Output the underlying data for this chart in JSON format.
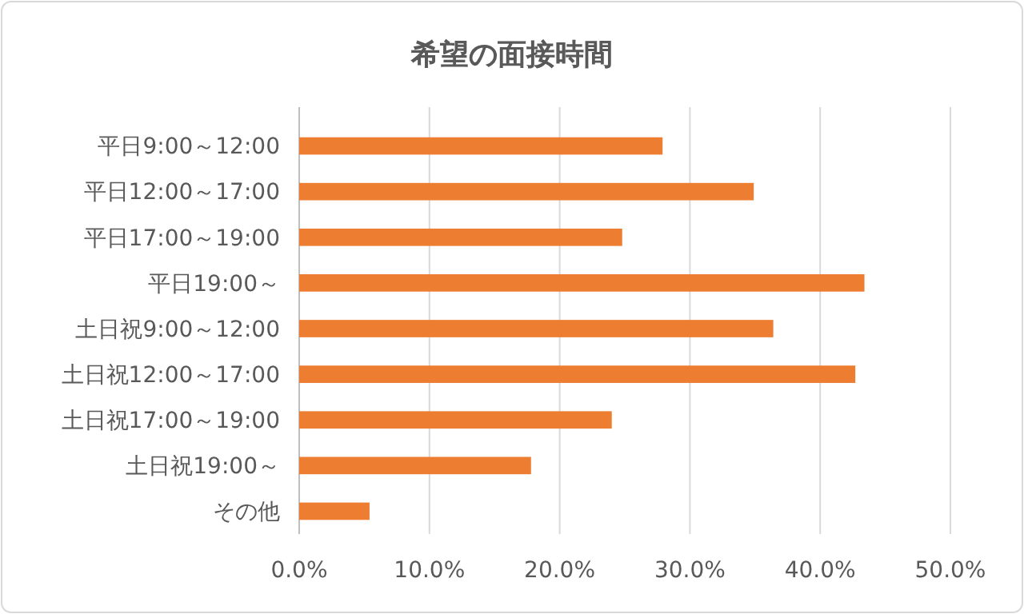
{
  "chart_data": {
    "type": "bar",
    "orientation": "horizontal",
    "title": "希望の面接時間",
    "categories": [
      "平日9:00～12:00",
      "平日12:00～17:00",
      "平日17:00～19:00",
      "平日19:00～",
      "土日祝9:00～12:00",
      "土日祝12:00～17:00",
      "土日祝17:00～19:00",
      "土日祝19:00～",
      "その他"
    ],
    "values": [
      27.9,
      34.9,
      24.8,
      43.4,
      36.4,
      42.7,
      24.0,
      17.8,
      5.4
    ],
    "color": "#ed7d31",
    "xlim": [
      0,
      50
    ],
    "xticks": [
      {
        "value": 0,
        "label": "0.0%"
      },
      {
        "value": 10,
        "label": "10.0%"
      },
      {
        "value": 20,
        "label": "20.0%"
      },
      {
        "value": 30,
        "label": "30.0%"
      },
      {
        "value": 40,
        "label": "40.0%"
      },
      {
        "value": 50,
        "label": "50.0%"
      }
    ],
    "grid": "x"
  }
}
